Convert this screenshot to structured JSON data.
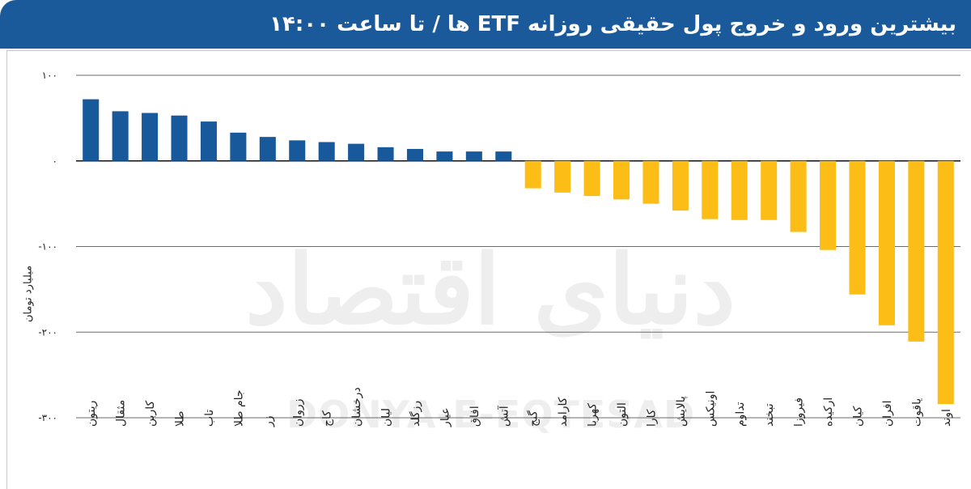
{
  "title": "بیشترین ورود و خروج پول حقیقی روزانه ETF ها / تا ساعت ۱۴:۰۰",
  "watermark": {
    "fa": "دنیای اقتصاد",
    "en": "DONYA-E-EQTESAD"
  },
  "colors": {
    "header": "#1a5a9a",
    "positive": "#17599a",
    "negative": "#fbbd16"
  },
  "chart_data": {
    "type": "bar",
    "ylabel": "میلیارد تومان",
    "ylim": [
      -300,
      100
    ],
    "yticks": [
      100,
      0,
      -100,
      -200,
      -300
    ],
    "ytick_labels": [
      "۱۰۰",
      "۰",
      "-۱۰۰",
      "-۲۰۰",
      "-۳۰۰"
    ],
    "grid": true,
    "categories": [
      "ریتون",
      "مثقال",
      "کاربن",
      "طلا",
      "تاب",
      "جام طلا",
      "زر",
      "زروان",
      "کاج",
      "درخشان",
      "لیان",
      "رزگلد",
      "عیار",
      "افاق",
      "آتش",
      "گنج",
      "کارامد",
      "کهربا",
      "التون",
      "کارا",
      "پالایش",
      "اونیکس",
      "تداوم",
      "تبخند",
      "فیروزا",
      "ارکیده",
      "کیان",
      "افران",
      "یاقوت",
      "اوند"
    ],
    "values": [
      72,
      58,
      56,
      53,
      46,
      33,
      28,
      24,
      22,
      20,
      16,
      14,
      11,
      11,
      11,
      -32,
      -37,
      -41,
      -45,
      -50,
      -58,
      -68,
      -69,
      -69,
      -83,
      -104,
      -156,
      -192,
      -211,
      -284
    ]
  }
}
